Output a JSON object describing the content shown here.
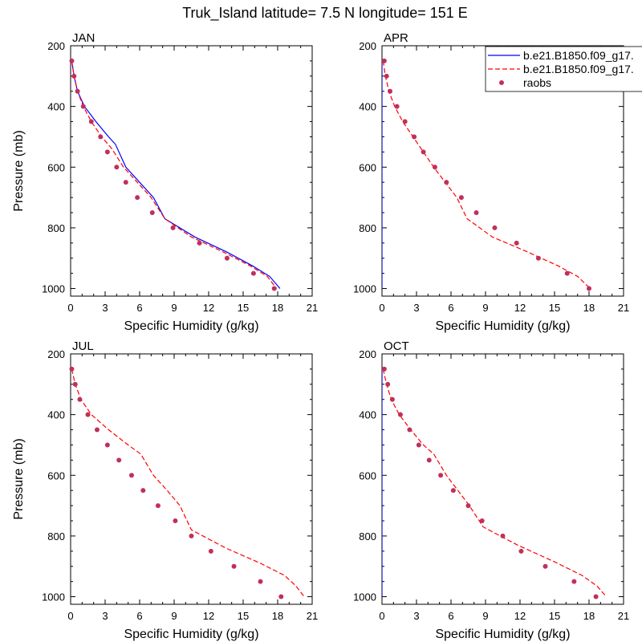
{
  "title": "Truk_Island  latitude= 7.5 N longitude= 151 E",
  "colors": {
    "model1": "#0000ff",
    "model2": "#ff0000",
    "raobs": "#c0305a"
  },
  "legend": {
    "placement": "top-right",
    "entries": [
      {
        "label": "b.e21.B1850.f09_g17.",
        "style": "solid",
        "color": "#0000ff"
      },
      {
        "label": "b.e21.B1850.f09_g17.",
        "style": "dashed",
        "color": "#ff0000"
      },
      {
        "label": "raobs",
        "style": "marker",
        "color": "#c0305a"
      }
    ]
  },
  "chart_data": [
    {
      "type": "line",
      "panel": "JAN",
      "xlabel": "Specific Humidity (g/kg)",
      "ylabel": "Pressure (mb)",
      "xlim": [
        0,
        21
      ],
      "ylim": [
        1025,
        200
      ],
      "y_inverted": true,
      "x_ticks": [
        "0",
        "3",
        "6",
        "9",
        "12",
        "15",
        "18",
        "21"
      ],
      "y_ticks": [
        "200",
        "400",
        "600",
        "800",
        "1000"
      ],
      "series": [
        {
          "name": "b.e21.B1850.f09_g17.",
          "style": "solid",
          "color": "#0000ff",
          "x": [
            0.1,
            0.3,
            0.6,
            1.2,
            2.2,
            3.3,
            3.9,
            4.8,
            6.0,
            7.2,
            8.2,
            10.8,
            13.6,
            15.8,
            17.3,
            18.2
          ],
          "y": [
            250,
            300,
            350,
            400,
            450,
            500,
            525,
            600,
            650,
            700,
            770,
            830,
            880,
            925,
            960,
            1000
          ]
        },
        {
          "name": "b.e21.B1850.f09_g17.",
          "style": "dashed",
          "color": "#ff0000",
          "x": [
            0.1,
            0.3,
            0.6,
            1.1,
            1.8,
            2.7,
            3.6,
            4.6,
            5.8,
            7.0,
            8.2,
            10.5,
            13.3,
            15.6,
            17.1,
            17.9
          ],
          "y": [
            250,
            300,
            350,
            400,
            450,
            500,
            540,
            600,
            650,
            700,
            770,
            830,
            880,
            925,
            960,
            1000
          ]
        },
        {
          "name": "raobs",
          "style": "marker",
          "color": "#c0305a",
          "x": [
            0.1,
            0.3,
            0.6,
            1.1,
            1.8,
            2.6,
            3.2,
            4.0,
            4.8,
            5.8,
            7.1,
            8.9,
            11.2,
            13.6,
            15.9,
            17.7
          ],
          "y": [
            250,
            300,
            350,
            400,
            450,
            500,
            550,
            600,
            650,
            700,
            750,
            800,
            850,
            900,
            950,
            1000
          ]
        }
      ]
    },
    {
      "type": "line",
      "panel": "APR",
      "xlabel": "Specific Humidity (g/kg)",
      "ylabel": "",
      "xlim": [
        0,
        21
      ],
      "ylim": [
        1025,
        200
      ],
      "y_inverted": true,
      "x_ticks": [
        "0",
        "3",
        "6",
        "9",
        "12",
        "15",
        "18",
        "21"
      ],
      "y_ticks": [
        "200",
        "400",
        "600",
        "800",
        "1000"
      ],
      "series": [
        {
          "name": "b.e21.B1850.f09_g17.",
          "style": "solid",
          "color": "#0000ff",
          "x": [
            0.0,
            0.0
          ],
          "y": [
            250,
            1000
          ]
        },
        {
          "name": "b.e21.B1850.f09_g17.",
          "style": "dashed",
          "color": "#ff0000",
          "x": [
            0.1,
            0.3,
            0.6,
            1.1,
            1.8,
            2.7,
            3.6,
            4.5,
            5.5,
            6.5,
            7.4,
            9.6,
            12.7,
            15.3,
            17.0,
            18.1
          ],
          "y": [
            250,
            300,
            350,
            400,
            450,
            500,
            550,
            600,
            650,
            700,
            770,
            830,
            880,
            925,
            960,
            1000
          ]
        },
        {
          "name": "raobs",
          "style": "marker",
          "color": "#c0305a",
          "x": [
            0.2,
            0.4,
            0.7,
            1.3,
            2.0,
            2.8,
            3.6,
            4.6,
            5.6,
            6.9,
            8.2,
            9.8,
            11.7,
            13.6,
            16.1,
            18.0
          ],
          "y": [
            250,
            300,
            350,
            400,
            450,
            500,
            550,
            600,
            650,
            700,
            750,
            800,
            850,
            900,
            950,
            1000
          ]
        }
      ]
    },
    {
      "type": "line",
      "panel": "JUL",
      "xlabel": "Specific Humidity (g/kg)",
      "ylabel": "Pressure (mb)",
      "xlim": [
        0,
        21
      ],
      "ylim": [
        1025,
        200
      ],
      "y_inverted": true,
      "x_ticks": [
        "0",
        "3",
        "6",
        "9",
        "12",
        "15",
        "18",
        "21"
      ],
      "y_ticks": [
        "200",
        "400",
        "600",
        "800",
        "1000"
      ],
      "series": [
        {
          "name": "b.e21.B1850.f09_g17.",
          "style": "dashed",
          "color": "#ff0000",
          "x": [
            0.1,
            0.4,
            0.9,
            1.8,
            3.3,
            5.0,
            6.1,
            7.2,
            8.4,
            9.5,
            10.5,
            13.5,
            16.5,
            18.6,
            19.6,
            20.3
          ],
          "y": [
            250,
            300,
            350,
            400,
            450,
            500,
            530,
            600,
            650,
            700,
            780,
            840,
            890,
            930,
            965,
            1000
          ]
        },
        {
          "name": "raobs",
          "style": "marker",
          "color": "#c0305a",
          "x": [
            0.1,
            0.4,
            0.8,
            1.5,
            2.3,
            3.2,
            4.2,
            5.3,
            6.3,
            7.6,
            9.1,
            10.5,
            12.2,
            14.2,
            16.5,
            18.3
          ],
          "y": [
            250,
            300,
            350,
            400,
            450,
            500,
            550,
            600,
            650,
            700,
            750,
            800,
            850,
            900,
            950,
            1000
          ]
        }
      ]
    },
    {
      "type": "line",
      "panel": "OCT",
      "xlabel": "Specific Humidity (g/kg)",
      "ylabel": "",
      "xlim": [
        0,
        21
      ],
      "ylim": [
        1025,
        200
      ],
      "y_inverted": true,
      "x_ticks": [
        "0",
        "3",
        "6",
        "9",
        "12",
        "15",
        "18",
        "21"
      ],
      "y_ticks": [
        "200",
        "400",
        "600",
        "800",
        "1000"
      ],
      "series": [
        {
          "name": "b.e21.B1850.f09_g17.",
          "style": "solid",
          "color": "#0000ff",
          "x": [
            0.0,
            0.0
          ],
          "y": [
            250,
            1000
          ]
        },
        {
          "name": "b.e21.B1850.f09_g17.",
          "style": "dashed",
          "color": "#ff0000",
          "x": [
            0.1,
            0.4,
            0.8,
            1.5,
            2.5,
            3.6,
            4.5,
            5.6,
            6.6,
            7.6,
            8.8,
            11.8,
            15.0,
            17.4,
            18.7,
            19.5
          ],
          "y": [
            250,
            300,
            350,
            400,
            450,
            500,
            530,
            600,
            650,
            700,
            770,
            830,
            885,
            930,
            965,
            1000
          ]
        },
        {
          "name": "raobs",
          "style": "marker",
          "color": "#c0305a",
          "x": [
            0.2,
            0.5,
            0.9,
            1.6,
            2.4,
            3.2,
            4.1,
            5.1,
            6.2,
            7.5,
            8.7,
            10.5,
            12.1,
            14.2,
            16.7,
            18.6
          ],
          "y": [
            250,
            300,
            350,
            400,
            450,
            500,
            550,
            600,
            650,
            700,
            750,
            800,
            850,
            900,
            950,
            1000
          ]
        }
      ]
    }
  ]
}
